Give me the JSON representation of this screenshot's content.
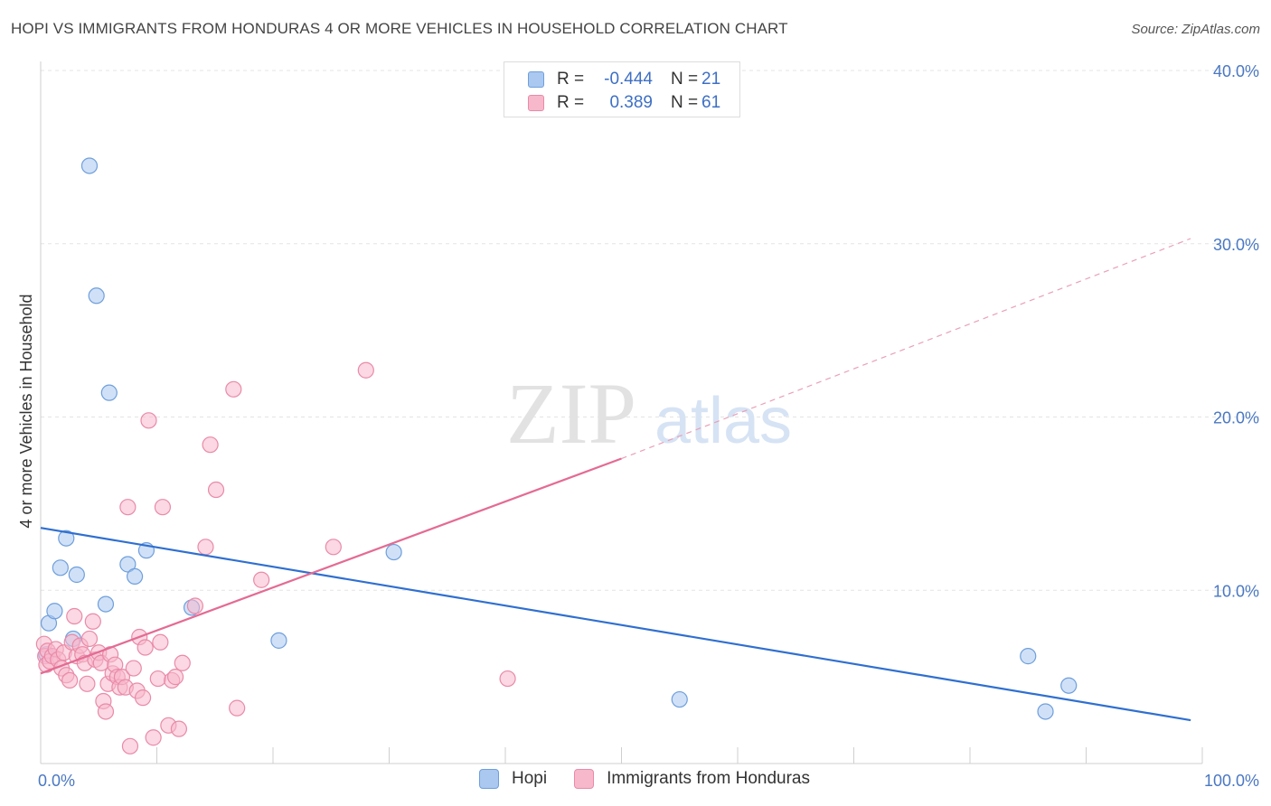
{
  "title": "HOPI VS IMMIGRANTS FROM HONDURAS 4 OR MORE VEHICLES IN HOUSEHOLD CORRELATION CHART",
  "source": "Source: ZipAtlas.com",
  "watermark": {
    "zip": "ZIP",
    "atlas": "atlas"
  },
  "legend": {
    "r_label": "R =",
    "n_label": "N =",
    "rows": [
      {
        "r": "-0.444",
        "n": "21",
        "color": "#aac8f0",
        "border": "#6f9fdc"
      },
      {
        "r": "0.389",
        "n": "61",
        "color": "#f7b8cc",
        "border": "#e98aa8"
      }
    ]
  },
  "bottom_legend": [
    {
      "label": "Hopi",
      "color": "#aac8f0",
      "border": "#6f9fdc"
    },
    {
      "label": "Immigrants from Honduras",
      "color": "#f7b8cc",
      "border": "#e98aa8"
    }
  ],
  "chart_data": {
    "type": "scatter",
    "xlabel": "",
    "ylabel": "4 or more Vehicles in Household",
    "xlim": [
      0,
      100
    ],
    "ylim": [
      0,
      40
    ],
    "x_tick_labels": [
      "0.0%",
      "100.0%"
    ],
    "y_ticks": [
      10,
      20,
      30,
      40
    ],
    "y_tick_labels": [
      "10.0%",
      "20.0%",
      "30.0%",
      "40.0%"
    ],
    "grid": true,
    "series": [
      {
        "name": "Hopi",
        "color": "#6f9fdc",
        "fill": "#aac8f0",
        "points": [
          [
            0.5,
            6.3
          ],
          [
            0.7,
            8.1
          ],
          [
            1.2,
            8.8
          ],
          [
            1.7,
            11.3
          ],
          [
            2.2,
            13.0
          ],
          [
            2.8,
            7.2
          ],
          [
            3.1,
            10.9
          ],
          [
            4.2,
            34.5
          ],
          [
            4.8,
            27.0
          ],
          [
            5.6,
            9.2
          ],
          [
            5.9,
            21.4
          ],
          [
            7.5,
            11.5
          ],
          [
            8.1,
            10.8
          ],
          [
            9.1,
            12.3
          ],
          [
            13,
            9.0
          ],
          [
            20.5,
            7.1
          ],
          [
            30.4,
            12.2
          ],
          [
            55,
            3.7
          ],
          [
            85,
            6.2
          ],
          [
            86.5,
            3.0
          ],
          [
            88.5,
            4.5
          ]
        ],
        "trend": {
          "x": [
            0,
            99
          ],
          "y": [
            13.6,
            2.5
          ]
        }
      },
      {
        "name": "Immigrants from Honduras",
        "color": "#e98aa8",
        "fill": "#f7b8cc",
        "points": [
          [
            0.3,
            6.9
          ],
          [
            0.4,
            6.2
          ],
          [
            0.5,
            5.7
          ],
          [
            0.6,
            6.5
          ],
          [
            0.8,
            5.9
          ],
          [
            1.0,
            6.2
          ],
          [
            1.3,
            6.6
          ],
          [
            1.5,
            6.0
          ],
          [
            1.8,
            5.5
          ],
          [
            2.0,
            6.4
          ],
          [
            2.2,
            5.1
          ],
          [
            2.5,
            4.8
          ],
          [
            2.7,
            7.0
          ],
          [
            2.9,
            8.5
          ],
          [
            3.1,
            6.2
          ],
          [
            3.4,
            6.8
          ],
          [
            3.6,
            6.3
          ],
          [
            3.8,
            5.8
          ],
          [
            4.0,
            4.6
          ],
          [
            4.2,
            7.2
          ],
          [
            4.5,
            8.2
          ],
          [
            4.7,
            6.0
          ],
          [
            5.0,
            6.4
          ],
          [
            5.2,
            5.8
          ],
          [
            5.4,
            3.6
          ],
          [
            5.6,
            3.0
          ],
          [
            5.8,
            4.6
          ],
          [
            6.0,
            6.3
          ],
          [
            6.2,
            5.2
          ],
          [
            6.4,
            5.7
          ],
          [
            6.6,
            5.0
          ],
          [
            6.8,
            4.4
          ],
          [
            7.0,
            5.0
          ],
          [
            7.3,
            4.4
          ],
          [
            7.5,
            14.8
          ],
          [
            7.7,
            1.0
          ],
          [
            8.0,
            5.5
          ],
          [
            8.3,
            4.2
          ],
          [
            8.5,
            7.3
          ],
          [
            8.8,
            3.8
          ],
          [
            9.0,
            6.7
          ],
          [
            9.3,
            19.8
          ],
          [
            9.7,
            1.5
          ],
          [
            10.1,
            4.9
          ],
          [
            10.3,
            7.0
          ],
          [
            10.5,
            14.8
          ],
          [
            11.0,
            2.2
          ],
          [
            11.3,
            4.8
          ],
          [
            11.6,
            5.0
          ],
          [
            11.9,
            2.0
          ],
          [
            12.2,
            5.8
          ],
          [
            13.3,
            9.1
          ],
          [
            14.2,
            12.5
          ],
          [
            14.6,
            18.4
          ],
          [
            15.1,
            15.8
          ],
          [
            16.6,
            21.6
          ],
          [
            16.9,
            3.2
          ],
          [
            19.0,
            10.6
          ],
          [
            25.2,
            12.5
          ],
          [
            28.0,
            22.7
          ],
          [
            40.2,
            4.9
          ]
        ],
        "trend": {
          "x": [
            0,
            50
          ],
          "y": [
            5.2,
            17.6
          ]
        },
        "trend_extension": {
          "x": [
            50,
            99
          ],
          "y": [
            17.6,
            30.3
          ]
        }
      }
    ]
  }
}
